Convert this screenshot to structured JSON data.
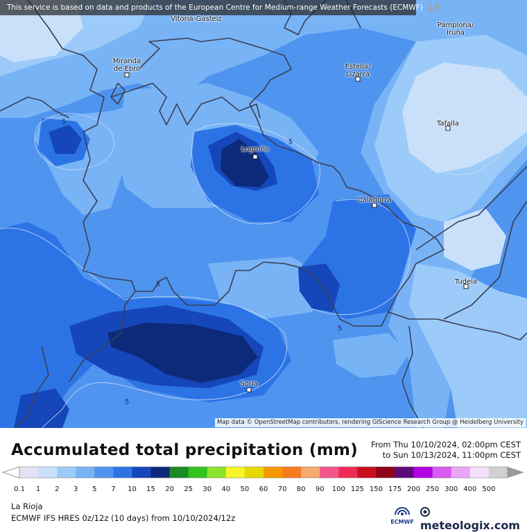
{
  "banner": {
    "text": "This service is based on data and products of the European Centre for Medium-range Weather Forecasts (ECMWF)",
    "badge": "16"
  },
  "cities": [
    {
      "key": "vitoria",
      "name": "Vitoria-Gasteiz"
    },
    {
      "key": "pamplona",
      "name": "Pamplona/\nIruña"
    },
    {
      "key": "miranda",
      "name": "Miranda\nde Ebro"
    },
    {
      "key": "estella",
      "name": "Estella/\nLizarra"
    },
    {
      "key": "tafalla",
      "name": "Tafalla"
    },
    {
      "key": "logrono",
      "name": "Logroño"
    },
    {
      "key": "calahorra",
      "name": "Calahorra"
    },
    {
      "key": "tudela",
      "name": "Tudela"
    },
    {
      "key": "soria",
      "name": "Soria"
    }
  ],
  "contour_label": "5",
  "attribution": "Map data © OpenStreetMap contributors, rendering GIScience Research Group @ Heidelberg University",
  "legend": {
    "title": "Accumulated total precipitation (mm)",
    "period_from": "From Thu 10/10/2024, 02:00pm CEST",
    "period_to": "to Sun 10/13/2024, 11:00pm CEST",
    "scale_values": [
      "0.1",
      "1",
      "2",
      "3",
      "5",
      "7",
      "10",
      "15",
      "20",
      "25",
      "30",
      "40",
      "50",
      "60",
      "70",
      "80",
      "90",
      "100",
      "125",
      "150",
      "175",
      "200",
      "250",
      "300",
      "400",
      "500"
    ],
    "scale_colors": [
      "#e3e3f3",
      "#c9e0fb",
      "#9ccbf9",
      "#78b3f6",
      "#4f94ef",
      "#2c74e6",
      "#1547ba",
      "#0d2a7a",
      "#1a8a22",
      "#2fc41f",
      "#8be32b",
      "#f5f52a",
      "#e6d900",
      "#f59a00",
      "#f57b1f",
      "#f7a96e",
      "#f4568a",
      "#ef2a55",
      "#c90e1d",
      "#8c0018",
      "#5e0a7a",
      "#b100e6",
      "#d95bf2",
      "#eba5f7",
      "#f4dffb",
      "#d0d0d0"
    ]
  },
  "info": {
    "region": "La Rioja",
    "model": "ECMWF IFS HRES 0z/12z (10 days) from  10/10/2024/12z"
  },
  "logos": {
    "ecmwf": "ECMWF",
    "meteologix": "meteologix.com"
  }
}
